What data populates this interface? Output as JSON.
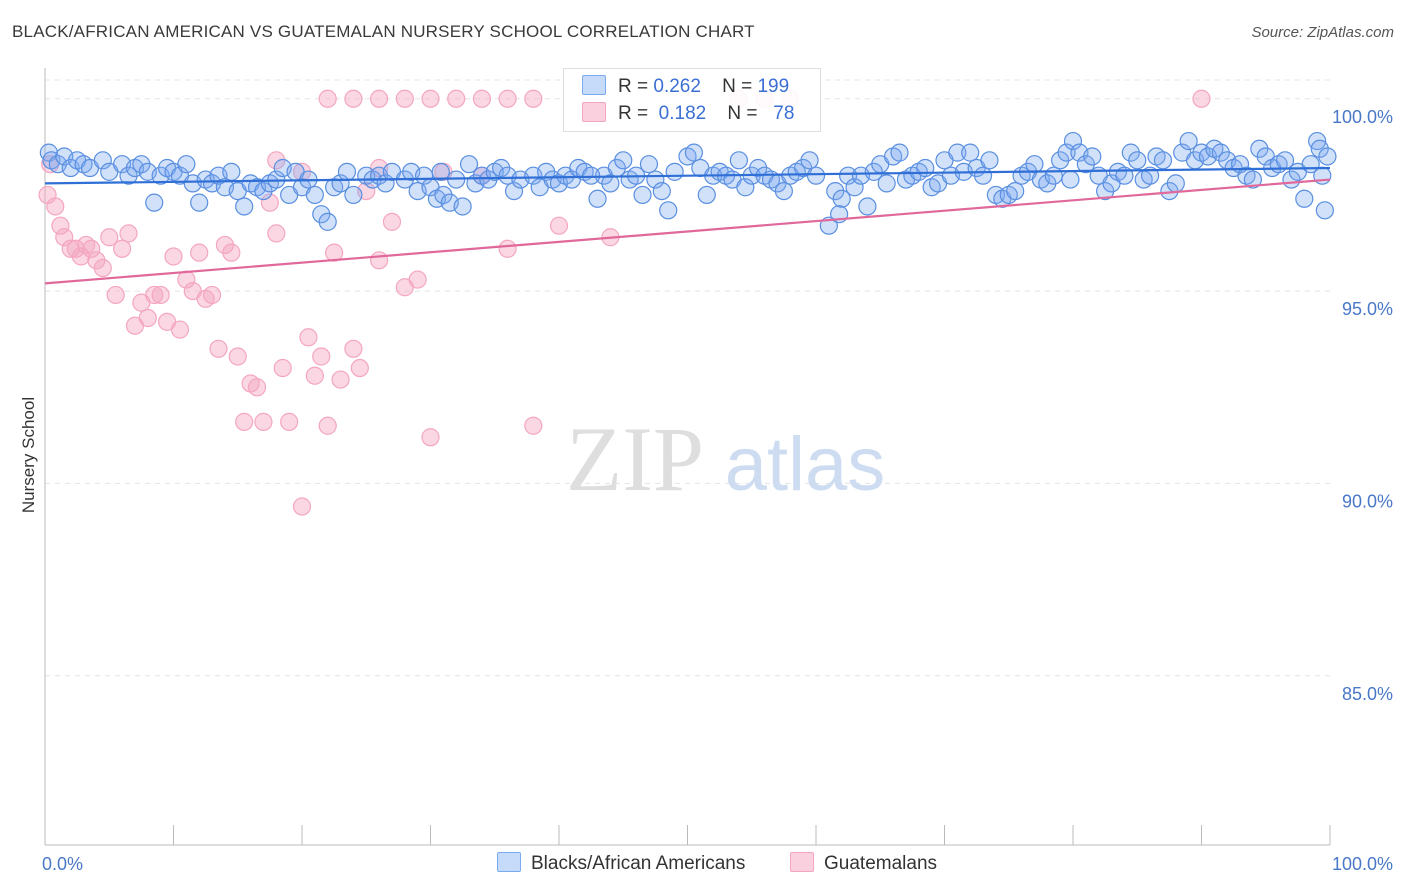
{
  "title": "BLACK/AFRICAN AMERICAN VS GUATEMALAN NURSERY SCHOOL CORRELATION CHART",
  "source": "Source: ZipAtlas.com",
  "watermark": {
    "zip": "ZIP",
    "atlas": "atlas"
  },
  "legend_top": [
    {
      "r_label": "R =",
      "r_value": "0.262",
      "n_label": "N =",
      "n_value": "199"
    },
    {
      "r_label": "R =",
      "r_value": "0.182",
      "n_label": "N =",
      "n_value": "78"
    }
  ],
  "chart_data": {
    "type": "scatter",
    "title": "BLACK/AFRICAN AMERICAN VS GUATEMALAN NURSERY SCHOOL CORRELATION CHART",
    "xlabel": "",
    "ylabel": "Nursery School",
    "xlim": [
      0,
      100
    ],
    "ylim": [
      80.6,
      100.8
    ],
    "x_tick_labels": [
      "0.0%",
      "100.0%"
    ],
    "y_ticks": [
      85,
      90,
      95,
      100
    ],
    "y_tick_labels": [
      "85.0%",
      "90.0%",
      "95.0%",
      "100.0%"
    ],
    "grid": true,
    "legend_position": "top-center and bottom",
    "series": [
      {
        "name": "Blacks/African Americans",
        "color": "#7aaaf0",
        "line_color": "#2f6fd6",
        "trend": {
          "x": [
            0,
            100
          ],
          "y": [
            97.8,
            98.2
          ]
        },
        "points": [
          [
            0.3,
            98.6
          ],
          [
            0.5,
            98.4
          ],
          [
            1,
            98.3
          ],
          [
            1.5,
            98.5
          ],
          [
            2,
            98.2
          ],
          [
            2.5,
            98.4
          ],
          [
            3,
            98.3
          ],
          [
            3.5,
            98.2
          ],
          [
            4.5,
            98.4
          ],
          [
            5,
            98.1
          ],
          [
            6,
            98.3
          ],
          [
            6.5,
            98.0
          ],
          [
            7,
            98.2
          ],
          [
            7.5,
            98.3
          ],
          [
            8,
            98.1
          ],
          [
            8.5,
            97.3
          ],
          [
            9,
            98.0
          ],
          [
            9.5,
            98.2
          ],
          [
            10,
            98.1
          ],
          [
            10.5,
            98.0
          ],
          [
            11,
            98.3
          ],
          [
            11.5,
            97.8
          ],
          [
            12,
            97.3
          ],
          [
            12.5,
            97.9
          ],
          [
            13,
            97.8
          ],
          [
            13.5,
            98.0
          ],
          [
            14,
            97.7
          ],
          [
            14.5,
            98.1
          ],
          [
            15,
            97.6
          ],
          [
            15.5,
            97.2
          ],
          [
            16,
            97.8
          ],
          [
            16.5,
            97.7
          ],
          [
            17,
            97.6
          ],
          [
            17.5,
            97.8
          ],
          [
            18,
            97.9
          ],
          [
            18.5,
            98.2
          ],
          [
            19,
            97.5
          ],
          [
            19.5,
            98.1
          ],
          [
            20,
            97.7
          ],
          [
            20.5,
            97.9
          ],
          [
            21,
            97.5
          ],
          [
            21.5,
            97.0
          ],
          [
            22,
            96.8
          ],
          [
            22.5,
            97.7
          ],
          [
            23,
            97.8
          ],
          [
            23.5,
            98.1
          ],
          [
            24,
            97.5
          ],
          [
            25,
            98.0
          ],
          [
            25.5,
            97.9
          ],
          [
            26,
            98.0
          ],
          [
            26.5,
            97.8
          ],
          [
            27,
            98.1
          ],
          [
            28,
            97.9
          ],
          [
            28.5,
            98.1
          ],
          [
            29,
            97.6
          ],
          [
            29.5,
            98.0
          ],
          [
            30,
            97.7
          ],
          [
            30.5,
            97.4
          ],
          [
            31,
            97.5
          ],
          [
            31.5,
            97.3
          ],
          [
            32,
            97.9
          ],
          [
            32.5,
            97.2
          ],
          [
            33,
            98.3
          ],
          [
            33.5,
            97.8
          ],
          [
            34,
            98.0
          ],
          [
            34.5,
            97.9
          ],
          [
            35,
            98.1
          ],
          [
            35.5,
            98.2
          ],
          [
            36,
            98.0
          ],
          [
            36.5,
            97.6
          ],
          [
            37,
            97.9
          ],
          [
            38,
            98.0
          ],
          [
            38.5,
            97.7
          ],
          [
            39,
            98.1
          ],
          [
            39.5,
            97.9
          ],
          [
            40,
            97.8
          ],
          [
            40.5,
            98.0
          ],
          [
            41,
            97.9
          ],
          [
            41.5,
            98.2
          ],
          [
            42,
            98.1
          ],
          [
            43,
            97.4
          ],
          [
            43.5,
            98.0
          ],
          [
            44,
            97.8
          ],
          [
            44.5,
            98.2
          ],
          [
            45,
            98.4
          ],
          [
            45.5,
            97.9
          ],
          [
            46,
            98.0
          ],
          [
            46.5,
            97.5
          ],
          [
            47,
            98.3
          ],
          [
            47.5,
            97.9
          ],
          [
            48,
            97.6
          ],
          [
            48.5,
            97.1
          ],
          [
            49,
            98.1
          ],
          [
            50,
            98.5
          ],
          [
            50.5,
            98.6
          ],
          [
            51,
            98.2
          ],
          [
            51.5,
            97.5
          ],
          [
            52,
            98.0
          ],
          [
            52.5,
            98.1
          ],
          [
            53,
            98.0
          ],
          [
            53.5,
            97.9
          ],
          [
            54,
            98.4
          ],
          [
            54.5,
            97.7
          ],
          [
            55,
            98.0
          ],
          [
            55.5,
            98.2
          ],
          [
            56,
            98.0
          ],
          [
            56.5,
            97.9
          ],
          [
            57,
            97.8
          ],
          [
            57.5,
            97.6
          ],
          [
            58,
            98.0
          ],
          [
            58.5,
            98.1
          ],
          [
            59,
            98.2
          ],
          [
            59.5,
            98.4
          ],
          [
            60,
            98.0
          ],
          [
            61,
            96.7
          ],
          [
            61.5,
            97.6
          ],
          [
            62,
            97.4
          ],
          [
            62.5,
            98.0
          ],
          [
            63,
            97.7
          ],
          [
            63.5,
            98.0
          ],
          [
            64,
            97.2
          ],
          [
            64.5,
            98.1
          ],
          [
            65,
            98.3
          ],
          [
            65.5,
            97.8
          ],
          [
            66,
            98.5
          ],
          [
            66.5,
            98.6
          ],
          [
            67,
            97.9
          ],
          [
            67.5,
            98.0
          ],
          [
            68,
            98.1
          ],
          [
            68.5,
            98.2
          ],
          [
            69,
            97.7
          ],
          [
            69.5,
            97.8
          ],
          [
            70,
            98.4
          ],
          [
            70.5,
            98.0
          ],
          [
            71,
            98.6
          ],
          [
            71.5,
            98.1
          ],
          [
            72,
            98.6
          ],
          [
            72.5,
            98.2
          ],
          [
            73,
            98.0
          ],
          [
            73.5,
            98.4
          ],
          [
            74,
            97.5
          ],
          [
            74.5,
            97.4
          ],
          [
            75,
            97.5
          ],
          [
            75.5,
            97.6
          ],
          [
            76,
            98.0
          ],
          [
            76.5,
            98.1
          ],
          [
            77,
            98.3
          ],
          [
            77.5,
            97.9
          ],
          [
            78,
            97.8
          ],
          [
            78.5,
            98.0
          ],
          [
            79,
            98.4
          ],
          [
            79.5,
            98.6
          ],
          [
            80,
            98.9
          ],
          [
            80.5,
            98.6
          ],
          [
            81,
            98.3
          ],
          [
            81.5,
            98.5
          ],
          [
            82,
            98.0
          ],
          [
            82.5,
            97.6
          ],
          [
            83,
            97.8
          ],
          [
            83.5,
            98.1
          ],
          [
            84,
            98.0
          ],
          [
            84.5,
            98.6
          ],
          [
            85,
            98.4
          ],
          [
            85.5,
            97.9
          ],
          [
            86,
            98.0
          ],
          [
            86.5,
            98.5
          ],
          [
            87,
            98.4
          ],
          [
            87.5,
            97.6
          ],
          [
            88,
            97.8
          ],
          [
            88.5,
            98.6
          ],
          [
            89,
            98.9
          ],
          [
            89.5,
            98.4
          ],
          [
            90,
            98.6
          ],
          [
            90.5,
            98.5
          ],
          [
            91,
            98.7
          ],
          [
            91.5,
            98.6
          ],
          [
            92,
            98.4
          ],
          [
            92.5,
            98.2
          ],
          [
            93,
            98.3
          ],
          [
            93.5,
            98.0
          ],
          [
            94,
            97.9
          ],
          [
            94.5,
            98.7
          ],
          [
            95,
            98.5
          ],
          [
            95.5,
            98.2
          ],
          [
            96,
            98.3
          ],
          [
            96.5,
            98.4
          ],
          [
            97,
            97.9
          ],
          [
            97.5,
            98.1
          ],
          [
            98,
            97.4
          ],
          [
            98.5,
            98.3
          ],
          [
            99,
            98.9
          ],
          [
            99.2,
            98.7
          ],
          [
            99.4,
            98.0
          ],
          [
            99.6,
            97.1
          ],
          [
            99.8,
            98.5
          ],
          [
            30.8,
            98.1
          ],
          [
            61.8,
            97.0
          ],
          [
            42.5,
            98.0
          ],
          [
            79.8,
            97.9
          ]
        ]
      },
      {
        "name": "Guatemalans",
        "color": "#f4a6c0",
        "line_color": "#e0689a",
        "trend": {
          "x": [
            0,
            100
          ],
          "y": [
            95.2,
            97.9
          ]
        },
        "points": [
          [
            0.2,
            97.5
          ],
          [
            0.4,
            98.3
          ],
          [
            0.8,
            97.2
          ],
          [
            1.2,
            96.7
          ],
          [
            1.5,
            96.4
          ],
          [
            2,
            96.1
          ],
          [
            2.4,
            96.1
          ],
          [
            2.8,
            95.9
          ],
          [
            3.2,
            96.2
          ],
          [
            3.6,
            96.1
          ],
          [
            4,
            95.8
          ],
          [
            4.5,
            95.6
          ],
          [
            5,
            96.4
          ],
          [
            5.5,
            94.9
          ],
          [
            6,
            96.1
          ],
          [
            6.5,
            96.5
          ],
          [
            7,
            94.1
          ],
          [
            7.5,
            94.7
          ],
          [
            8,
            94.3
          ],
          [
            8.5,
            94.9
          ],
          [
            9,
            94.9
          ],
          [
            9.5,
            94.2
          ],
          [
            10,
            95.9
          ],
          [
            10.5,
            94.0
          ],
          [
            11,
            95.3
          ],
          [
            11.5,
            95.0
          ],
          [
            12,
            96.0
          ],
          [
            12.5,
            94.8
          ],
          [
            13,
            94.9
          ],
          [
            13.5,
            93.5
          ],
          [
            14,
            96.2
          ],
          [
            14.5,
            96.0
          ],
          [
            15,
            93.3
          ],
          [
            15.5,
            91.6
          ],
          [
            16,
            92.6
          ],
          [
            16.5,
            92.5
          ],
          [
            17,
            91.6
          ],
          [
            17.5,
            97.3
          ],
          [
            18,
            96.5
          ],
          [
            18.5,
            93.0
          ],
          [
            19,
            91.6
          ],
          [
            20,
            89.4
          ],
          [
            20.5,
            93.8
          ],
          [
            21,
            92.8
          ],
          [
            21.5,
            93.3
          ],
          [
            22,
            91.5
          ],
          [
            22.5,
            96.0
          ],
          [
            23,
            92.7
          ],
          [
            24,
            93.5
          ],
          [
            24.5,
            93.0
          ],
          [
            25,
            97.6
          ],
          [
            26,
            95.8
          ],
          [
            27,
            96.8
          ],
          [
            28,
            95.1
          ],
          [
            29,
            95.3
          ],
          [
            30,
            91.2
          ],
          [
            31,
            98.1
          ],
          [
            34,
            98.0
          ],
          [
            36,
            96.1
          ],
          [
            38,
            91.5
          ],
          [
            40,
            96.7
          ],
          [
            22,
            100
          ],
          [
            24,
            100
          ],
          [
            26,
            100
          ],
          [
            28,
            100
          ],
          [
            30,
            100
          ],
          [
            32,
            100
          ],
          [
            34,
            100
          ],
          [
            36,
            100
          ],
          [
            38,
            100
          ],
          [
            54,
            100
          ],
          [
            56,
            100
          ],
          [
            58,
            100
          ],
          [
            90,
            100
          ],
          [
            18,
            98.4
          ],
          [
            20,
            98.1
          ],
          [
            26,
            98.2
          ],
          [
            44,
            96.4
          ]
        ]
      }
    ]
  },
  "bottom_legend": [
    "Blacks/African Americans",
    "Guatemalans"
  ]
}
